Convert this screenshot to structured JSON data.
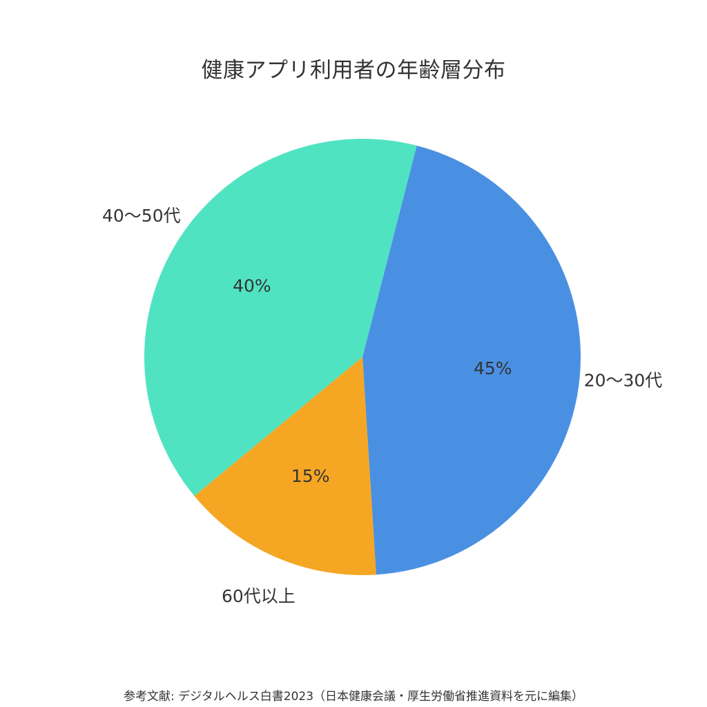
{
  "chart_data": {
    "type": "pie",
    "title": "健康アプリ利用者の年齢層分布",
    "categories": [
      "20〜30代",
      "40〜50代",
      "60代以上"
    ],
    "values": [
      45,
      40,
      15
    ],
    "value_labels": [
      "45%",
      "40%",
      "15%"
    ],
    "colors": [
      "#4A90E2",
      "#50E3C2",
      "#F5A623"
    ],
    "legend": "none",
    "source": "参考文献: デジタルヘルス白書2023（日本健康会議・厚生労働省推進資料を元に編集）"
  }
}
